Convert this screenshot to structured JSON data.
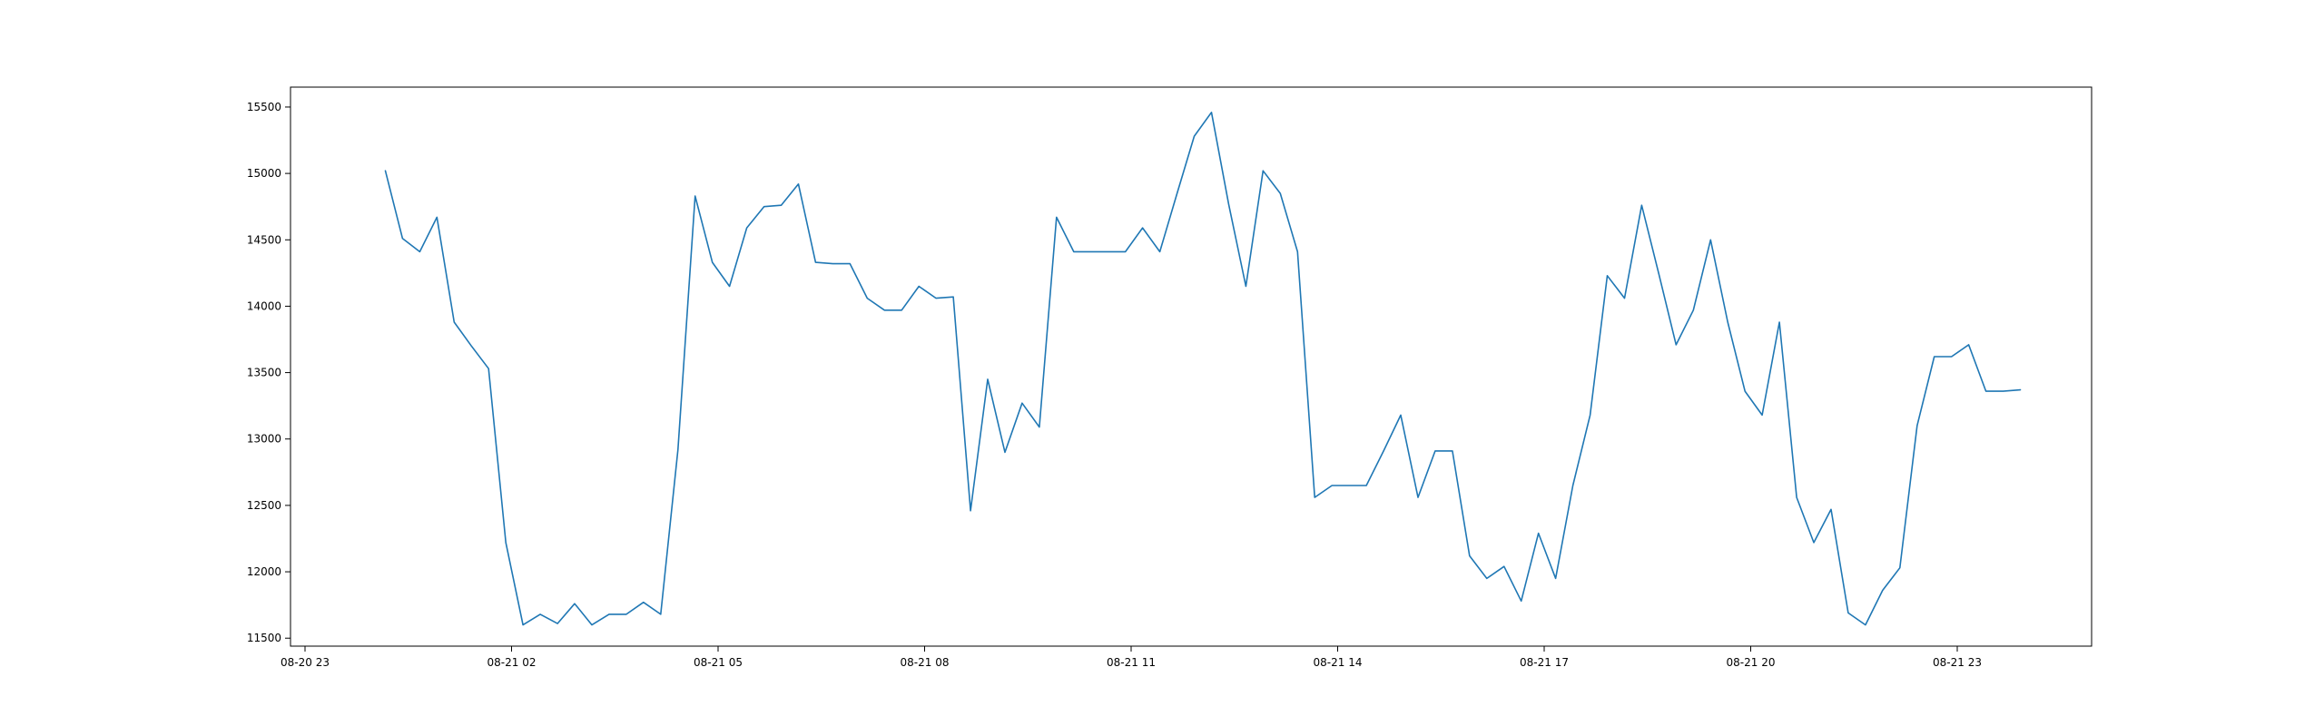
{
  "chart_data": {
    "type": "line",
    "title": "",
    "xlabel": "",
    "ylabel": "",
    "grid": false,
    "legend": "none",
    "x_axis": {
      "type": "time",
      "range": [
        "2023-08-20T23:00",
        "2023-08-21T23:00"
      ],
      "ticks": [
        {
          "t": "2023-08-20T23:00",
          "label": "08-20 23"
        },
        {
          "t": "2023-08-21T02:00",
          "label": "08-21 02"
        },
        {
          "t": "2023-08-21T05:00",
          "label": "08-21 05"
        },
        {
          "t": "2023-08-21T08:00",
          "label": "08-21 08"
        },
        {
          "t": "2023-08-21T11:00",
          "label": "08-21 11"
        },
        {
          "t": "2023-08-21T14:00",
          "label": "08-21 14"
        },
        {
          "t": "2023-08-21T17:00",
          "label": "08-21 17"
        },
        {
          "t": "2023-08-21T20:00",
          "label": "08-21 20"
        },
        {
          "t": "2023-08-21T23:00",
          "label": "08-21 23"
        }
      ]
    },
    "y_axis": {
      "range": [
        11440,
        15650
      ],
      "ticks": [
        {
          "value": 11500,
          "label": "11500"
        },
        {
          "value": 12000,
          "label": "12000"
        },
        {
          "value": 12500,
          "label": "12500"
        },
        {
          "value": 13000,
          "label": "13000"
        },
        {
          "value": 13500,
          "label": "13500"
        },
        {
          "value": 14000,
          "label": "14000"
        },
        {
          "value": 14500,
          "label": "14500"
        },
        {
          "value": 15000,
          "label": "15000"
        },
        {
          "value": 15500,
          "label": "15500"
        }
      ]
    },
    "series": [
      {
        "color": "#1f77b4",
        "points": [
          [
            "2023-08-21T00:10",
            15020
          ],
          [
            "2023-08-21T00:25",
            14510
          ],
          [
            "2023-08-21T00:40",
            14410
          ],
          [
            "2023-08-21T00:55",
            14670
          ],
          [
            "2023-08-21T01:10",
            13880
          ],
          [
            "2023-08-21T01:25",
            13700
          ],
          [
            "2023-08-21T01:40",
            13530
          ],
          [
            "2023-08-21T01:55",
            12220
          ],
          [
            "2023-08-21T02:10",
            11600
          ],
          [
            "2023-08-21T02:25",
            11680
          ],
          [
            "2023-08-21T02:40",
            11610
          ],
          [
            "2023-08-21T02:55",
            11760
          ],
          [
            "2023-08-21T03:10",
            11600
          ],
          [
            "2023-08-21T03:25",
            11680
          ],
          [
            "2023-08-21T03:40",
            11680
          ],
          [
            "2023-08-21T03:55",
            11770
          ],
          [
            "2023-08-21T04:10",
            11680
          ],
          [
            "2023-08-21T04:25",
            12920
          ],
          [
            "2023-08-21T04:40",
            14830
          ],
          [
            "2023-08-21T04:55",
            14330
          ],
          [
            "2023-08-21T05:10",
            14150
          ],
          [
            "2023-08-21T05:25",
            14590
          ],
          [
            "2023-08-21T05:40",
            14750
          ],
          [
            "2023-08-21T05:55",
            14760
          ],
          [
            "2023-08-21T06:10",
            14920
          ],
          [
            "2023-08-21T06:25",
            14330
          ],
          [
            "2023-08-21T06:40",
            14320
          ],
          [
            "2023-08-21T06:55",
            14320
          ],
          [
            "2023-08-21T07:10",
            14060
          ],
          [
            "2023-08-21T07:25",
            13970
          ],
          [
            "2023-08-21T07:40",
            13970
          ],
          [
            "2023-08-21T07:55",
            14150
          ],
          [
            "2023-08-21T08:10",
            14060
          ],
          [
            "2023-08-21T08:25",
            14070
          ],
          [
            "2023-08-21T08:40",
            12460
          ],
          [
            "2023-08-21T08:55",
            13450
          ],
          [
            "2023-08-21T09:10",
            12900
          ],
          [
            "2023-08-21T09:25",
            13270
          ],
          [
            "2023-08-21T09:40",
            13090
          ],
          [
            "2023-08-21T09:55",
            14670
          ],
          [
            "2023-08-21T10:10",
            14410
          ],
          [
            "2023-08-21T10:25",
            14410
          ],
          [
            "2023-08-21T10:40",
            14410
          ],
          [
            "2023-08-21T10:55",
            14410
          ],
          [
            "2023-08-21T11:10",
            14590
          ],
          [
            "2023-08-21T11:25",
            14410
          ],
          [
            "2023-08-21T11:40",
            14850
          ],
          [
            "2023-08-21T11:55",
            15280
          ],
          [
            "2023-08-21T12:10",
            15460
          ],
          [
            "2023-08-21T12:25",
            14770
          ],
          [
            "2023-08-21T12:40",
            14150
          ],
          [
            "2023-08-21T12:55",
            15020
          ],
          [
            "2023-08-21T13:10",
            14850
          ],
          [
            "2023-08-21T13:25",
            14410
          ],
          [
            "2023-08-21T13:40",
            12560
          ],
          [
            "2023-08-21T13:55",
            12650
          ],
          [
            "2023-08-21T14:10",
            12650
          ],
          [
            "2023-08-21T14:25",
            12650
          ],
          [
            "2023-08-21T14:40",
            12910
          ],
          [
            "2023-08-21T14:55",
            13180
          ],
          [
            "2023-08-21T15:10",
            12560
          ],
          [
            "2023-08-21T15:25",
            12910
          ],
          [
            "2023-08-21T15:40",
            12910
          ],
          [
            "2023-08-21T15:55",
            12120
          ],
          [
            "2023-08-21T16:10",
            11950
          ],
          [
            "2023-08-21T16:25",
            12040
          ],
          [
            "2023-08-21T16:40",
            11780
          ],
          [
            "2023-08-21T16:55",
            12290
          ],
          [
            "2023-08-21T17:10",
            11950
          ],
          [
            "2023-08-21T17:25",
            12650
          ],
          [
            "2023-08-21T17:40",
            13180
          ],
          [
            "2023-08-21T17:55",
            14230
          ],
          [
            "2023-08-21T18:10",
            14060
          ],
          [
            "2023-08-21T18:25",
            14760
          ],
          [
            "2023-08-21T18:40",
            14240
          ],
          [
            "2023-08-21T18:55",
            13710
          ],
          [
            "2023-08-21T19:10",
            13970
          ],
          [
            "2023-08-21T19:25",
            14500
          ],
          [
            "2023-08-21T19:40",
            13880
          ],
          [
            "2023-08-21T19:55",
            13360
          ],
          [
            "2023-08-21T20:10",
            13180
          ],
          [
            "2023-08-21T20:25",
            13880
          ],
          [
            "2023-08-21T20:40",
            12560
          ],
          [
            "2023-08-21T20:55",
            12220
          ],
          [
            "2023-08-21T21:10",
            12470
          ],
          [
            "2023-08-21T21:25",
            11690
          ],
          [
            "2023-08-21T21:40",
            11600
          ],
          [
            "2023-08-21T21:55",
            11860
          ],
          [
            "2023-08-21T22:10",
            12030
          ],
          [
            "2023-08-21T22:25",
            13100
          ],
          [
            "2023-08-21T22:40",
            13620
          ],
          [
            "2023-08-21T22:55",
            13620
          ],
          [
            "2023-08-21T23:10",
            13710
          ],
          [
            "2023-08-21T23:25",
            13360
          ],
          [
            "2023-08-21T23:40",
            13360
          ],
          [
            "2023-08-21T23:55",
            13370
          ]
        ]
      }
    ]
  }
}
